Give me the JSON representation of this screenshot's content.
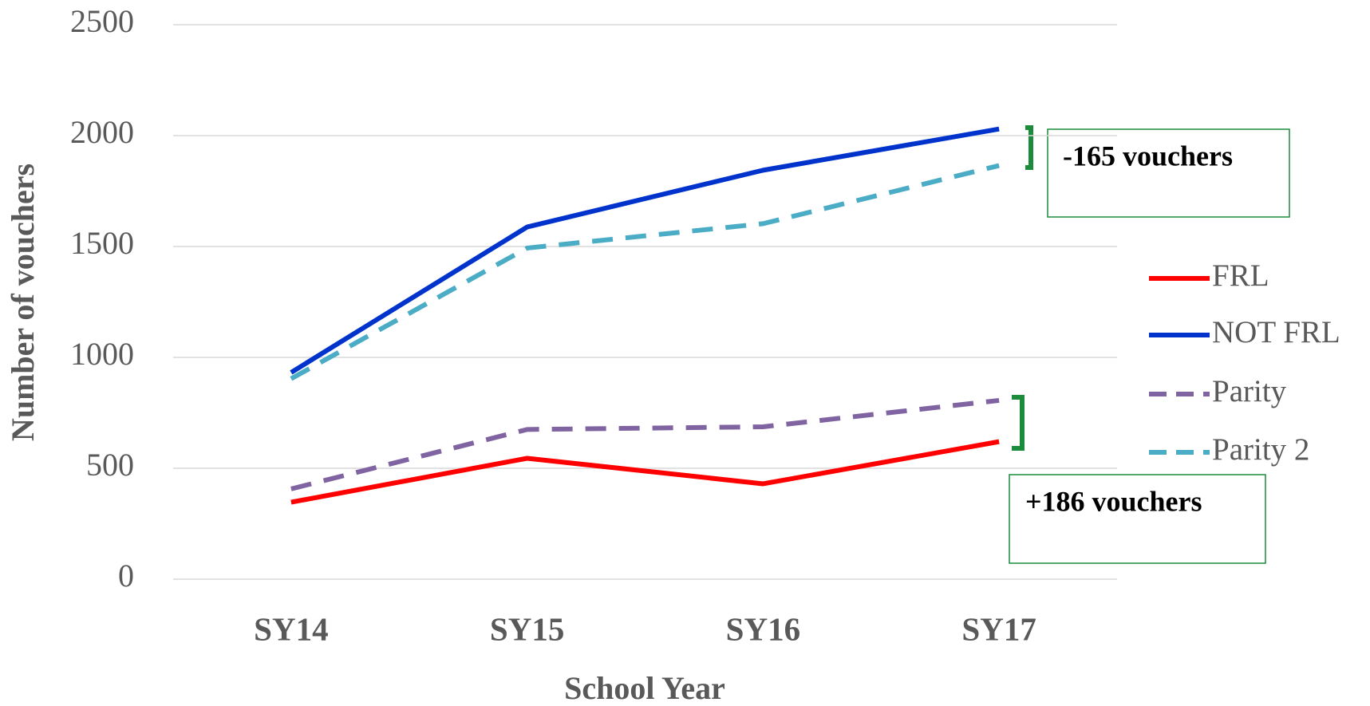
{
  "chart_data": {
    "type": "line",
    "x_label": "School Year",
    "y_label": "Number of vouchers",
    "categories": [
      "SY14",
      "SY15",
      "SY16",
      "SY17"
    ],
    "series": [
      {
        "name": "FRL",
        "color": "#ff0000",
        "dashed": false,
        "values": [
          347,
          545,
          430,
          620
        ]
      },
      {
        "name": "NOT FRL",
        "color": "#0033cc",
        "dashed": false,
        "values": [
          932,
          1588,
          1844,
          2030
        ]
      },
      {
        "name": "Parity",
        "color": "#8064a2",
        "dashed": true,
        "values": [
          407,
          675,
          687,
          806
        ]
      },
      {
        "name": "Parity 2",
        "color": "#4bacc6",
        "dashed": true,
        "values": [
          904,
          1493,
          1603,
          1865
        ]
      }
    ],
    "ylim": [
      0,
      2500
    ],
    "yticks": [
      0,
      500,
      1000,
      1500,
      2000,
      2500
    ],
    "grid": true,
    "legend": "right",
    "annotations": [
      "-165 vouchers",
      "+186 vouchers"
    ]
  }
}
